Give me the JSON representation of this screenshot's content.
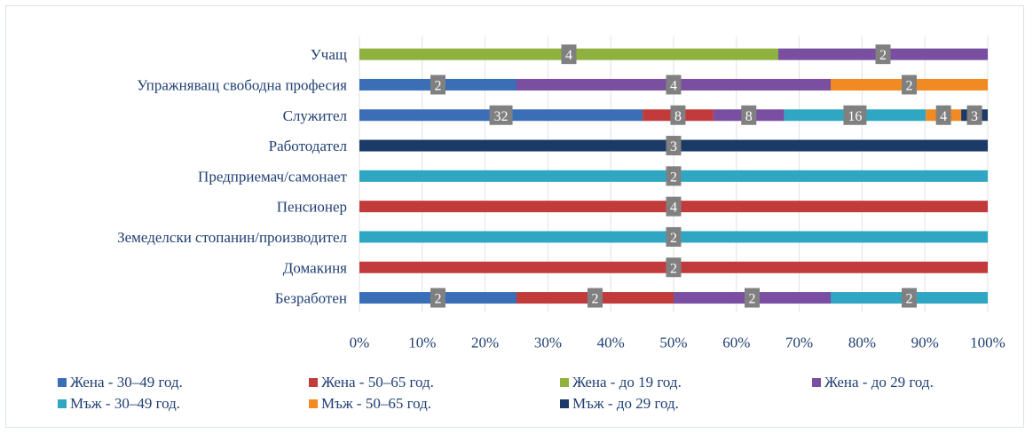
{
  "chart_data": {
    "type": "bar",
    "orientation": "horizontal",
    "stacked": "percent",
    "categories": [
      "Учащ",
      "Упражняващ свободна професия",
      "Служител",
      "Работодател",
      "Предприемач/самонает",
      "Пенсионер",
      "Земеделски стопанин/производител",
      "Домакиня",
      "Безработен"
    ],
    "series": [
      {
        "name": "Жена - 30–49 год.",
        "color": "#3a6fb8",
        "values": [
          0,
          2,
          32,
          0,
          0,
          0,
          0,
          0,
          2
        ]
      },
      {
        "name": "Жена - 50–65 год.",
        "color": "#c23b3b",
        "values": [
          0,
          0,
          8,
          0,
          0,
          4,
          0,
          2,
          2
        ]
      },
      {
        "name": "Жена - до 19 год.",
        "color": "#8fb23e",
        "values": [
          4,
          0,
          0,
          0,
          0,
          0,
          0,
          0,
          0
        ]
      },
      {
        "name": "Жена - до 29 год.",
        "color": "#7a4ea0",
        "values": [
          2,
          4,
          8,
          0,
          0,
          0,
          0,
          0,
          2
        ]
      },
      {
        "name": "Мъж - 30–49 год.",
        "color": "#2fa7c3",
        "values": [
          0,
          0,
          16,
          0,
          2,
          0,
          2,
          0,
          2
        ]
      },
      {
        "name": "Мъж - 50–65 год.",
        "color": "#f18a22",
        "values": [
          0,
          2,
          4,
          0,
          0,
          0,
          0,
          0,
          0
        ]
      },
      {
        "name": "Мъж - до 29 год.",
        "color": "#1b3a68",
        "values": [
          0,
          0,
          3,
          3,
          0,
          0,
          0,
          0,
          0
        ]
      }
    ],
    "x_ticks": [
      "0%",
      "10%",
      "20%",
      "30%",
      "40%",
      "50%",
      "60%",
      "70%",
      "80%",
      "90%",
      "100%"
    ],
    "xlim": [
      0,
      100
    ],
    "grid": true,
    "legend_position": "bottom",
    "data_labels": true
  }
}
